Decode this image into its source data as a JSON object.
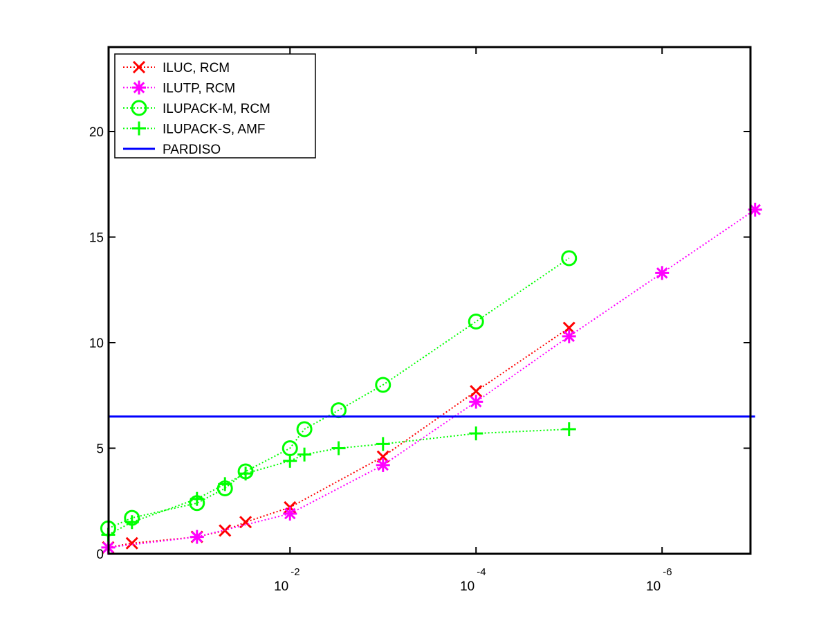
{
  "chart_data": {
    "type": "line",
    "title": "",
    "xlabel": "",
    "ylabel": "",
    "x_scale": "log-reversed",
    "x_range_log10": [
      -0.05,
      -6.95
    ],
    "ylim": [
      0,
      24
    ],
    "y_ticks": [
      0,
      5,
      10,
      15,
      20
    ],
    "x_ticks": [
      {
        "base": "10",
        "exp": "-2",
        "value": 0.01
      },
      {
        "base": "10",
        "exp": "-4",
        "value": 0.0001
      },
      {
        "base": "10",
        "exp": "-6",
        "value": 1e-06
      }
    ],
    "grid": false,
    "legend_position": "top-left",
    "series": [
      {
        "name": "ILUC, RCM",
        "color": "#ff0000",
        "marker": "x",
        "line": "dotted",
        "points": [
          {
            "x": 0.9,
            "y": 0.3
          },
          {
            "x": 0.5,
            "y": 0.5
          },
          {
            "x": 0.1,
            "y": 0.8
          },
          {
            "x": 0.05,
            "y": 1.1
          },
          {
            "x": 0.03,
            "y": 1.5
          },
          {
            "x": 0.01,
            "y": 2.2
          },
          {
            "x": 0.001,
            "y": 4.6
          },
          {
            "x": 0.0001,
            "y": 7.7
          },
          {
            "x": 1e-05,
            "y": 10.7
          }
        ]
      },
      {
        "name": "ILUTP, RCM",
        "color": "#ff00ff",
        "marker": "star",
        "line": "dotted",
        "points": [
          {
            "x": 0.9,
            "y": 0.3
          },
          {
            "x": 0.1,
            "y": 0.8
          },
          {
            "x": 0.01,
            "y": 1.9
          },
          {
            "x": 0.001,
            "y": 4.2
          },
          {
            "x": 0.0001,
            "y": 7.2
          },
          {
            "x": 1e-05,
            "y": 10.3
          },
          {
            "x": 1e-06,
            "y": 13.3
          },
          {
            "x": 1e-07,
            "y": 16.3
          }
        ]
      },
      {
        "name": "ILUPACK-M, RCM",
        "color": "#00ff00",
        "marker": "circle",
        "line": "dotted",
        "points": [
          {
            "x": 0.9,
            "y": 1.2
          },
          {
            "x": 0.5,
            "y": 1.7
          },
          {
            "x": 0.1,
            "y": 2.4
          },
          {
            "x": 0.05,
            "y": 3.1
          },
          {
            "x": 0.03,
            "y": 3.9
          },
          {
            "x": 0.01,
            "y": 5.0
          },
          {
            "x": 0.007,
            "y": 5.9
          },
          {
            "x": 0.003,
            "y": 6.8
          },
          {
            "x": 0.001,
            "y": 8.0
          },
          {
            "x": 0.0001,
            "y": 11.0
          },
          {
            "x": 1e-05,
            "y": 14.0
          }
        ]
      },
      {
        "name": "ILUPACK-S, AMF",
        "color": "#00ff00",
        "marker": "plus",
        "line": "dotted",
        "points": [
          {
            "x": 0.9,
            "y": 0.9
          },
          {
            "x": 0.5,
            "y": 1.5
          },
          {
            "x": 0.1,
            "y": 2.6
          },
          {
            "x": 0.05,
            "y": 3.3
          },
          {
            "x": 0.03,
            "y": 3.8
          },
          {
            "x": 0.01,
            "y": 4.4
          },
          {
            "x": 0.007,
            "y": 4.7
          },
          {
            "x": 0.003,
            "y": 5.0
          },
          {
            "x": 0.001,
            "y": 5.2
          },
          {
            "x": 0.0001,
            "y": 5.7
          },
          {
            "x": 1e-05,
            "y": 5.9
          }
        ]
      },
      {
        "name": "PARDISO",
        "color": "#0000ff",
        "marker": "none",
        "line": "solid",
        "points": [
          {
            "x": 0.9,
            "y": 6.5
          },
          {
            "x": 1e-07,
            "y": 6.5
          }
        ]
      }
    ]
  }
}
